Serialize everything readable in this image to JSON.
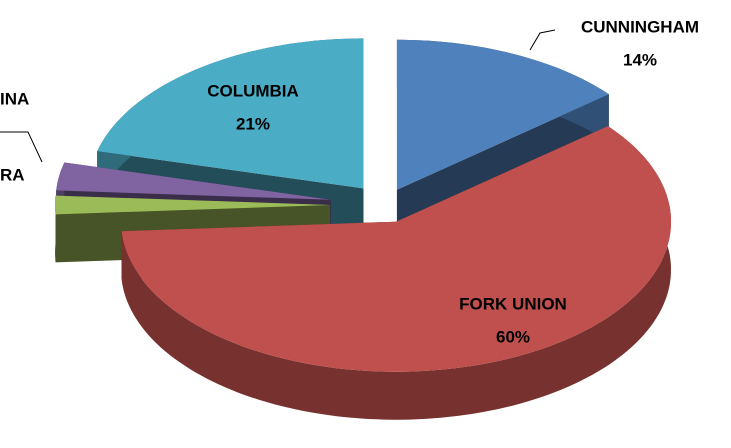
{
  "chart_data": {
    "type": "pie3d",
    "categories": [
      "CUNNINGHAM",
      "FORK UNION",
      "RA",
      "INA",
      "COLUMBIA"
    ],
    "values": [
      14,
      60,
      2,
      3,
      21
    ],
    "value_labels": [
      "14%",
      "60%",
      null,
      null,
      "21%"
    ],
    "colors": [
      "#4f81bd",
      "#c0504d",
      "#9bbb59",
      "#8064a2",
      "#4bacc6"
    ]
  }
}
